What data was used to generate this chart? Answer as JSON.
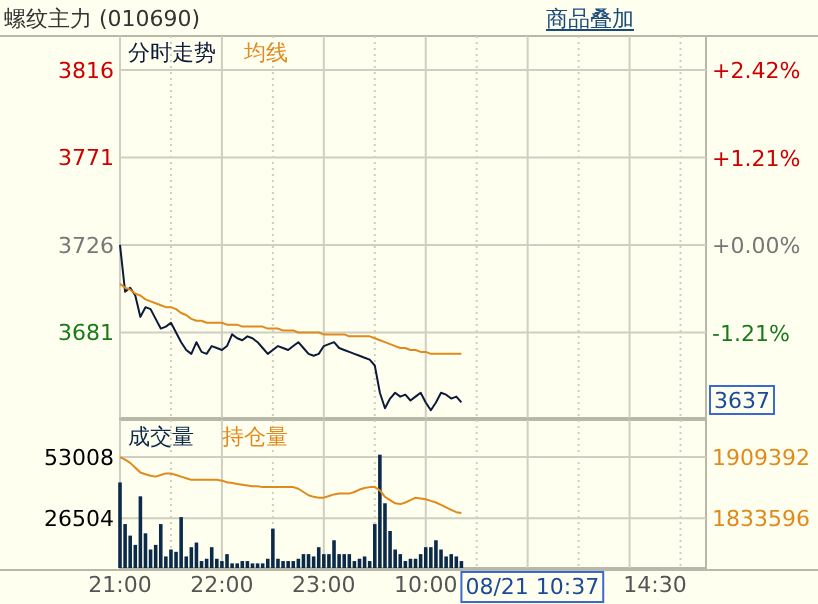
{
  "chart_data": [
    {
      "type": "line",
      "title": "螺纹主力 (010690)",
      "annotations": [
        "商品叠加",
        "3637"
      ],
      "categories": [
        null,
        null,
        null,
        null,
        null,
        null,
        null,
        null,
        null,
        null,
        null,
        null,
        null,
        null,
        null,
        null,
        null,
        null,
        null,
        null,
        null,
        null,
        null,
        null,
        null,
        null,
        null,
        null,
        null,
        null,
        null,
        null,
        null,
        null,
        null,
        null,
        null,
        null,
        null,
        null,
        null,
        null,
        null,
        null,
        null,
        null,
        null,
        null,
        null,
        null,
        null,
        null,
        null,
        null,
        null,
        null,
        null,
        null,
        null,
        null,
        null,
        null,
        null,
        null,
        null,
        null,
        null,
        null,
        null,
        null,
        null,
        null,
        null,
        null,
        null,
        null,
        null,
        null,
        null,
        null,
        null,
        null,
        null,
        null,
        null,
        null,
        null,
        null,
        null,
        null,
        null,
        null,
        null,
        null,
        null,
        null,
        null,
        null,
        null,
        null,
        null,
        null,
        null,
        null,
        null,
        null,
        null,
        null,
        null,
        null,
        null,
        null,
        null,
        null,
        null,
        null
      ],
      "series": [
        {
          "name": "分时走势",
          "color": "#0d1b3a",
          "values": [
            3726,
            3702,
            3704,
            3700,
            3689,
            3694,
            3693,
            3688,
            3683,
            3684,
            3686,
            3681,
            3676,
            3672,
            3670,
            3676,
            3671,
            3670,
            3674,
            3673,
            3672,
            3674,
            3680,
            3678,
            3677,
            3679,
            3678,
            3676,
            3673,
            3670,
            3672,
            3674,
            3673,
            3672,
            3674,
            3676,
            3673,
            3670,
            3669,
            3670,
            3674,
            3675,
            3676,
            3673,
            3672,
            3671,
            3670,
            3669,
            3668,
            3667,
            3664,
            3650,
            3642,
            3647,
            3650,
            3648,
            3649,
            3646,
            3648,
            3650,
            3645,
            3641,
            3645,
            3650,
            3649,
            3647,
            3648,
            3645,
            null,
            null,
            null,
            null,
            null,
            null,
            null,
            null,
            null,
            null,
            null,
            null,
            null,
            null,
            null,
            null,
            null,
            null,
            null,
            null,
            null,
            null,
            null,
            null,
            null,
            null,
            null,
            null,
            null,
            null,
            null,
            null,
            null,
            null,
            null,
            null,
            null,
            null,
            null,
            null,
            null,
            null,
            null,
            null,
            null,
            null,
            null,
            null
          ]
        },
        {
          "name": "均线",
          "color": "#e08a1e",
          "values": [
            3706,
            3704,
            3703,
            3701,
            3700,
            3698,
            3697,
            3696,
            3695,
            3694,
            3694,
            3693,
            3691,
            3690,
            3688,
            3687,
            3687,
            3686,
            3686,
            3686,
            3686,
            3685,
            3685,
            3685,
            3684,
            3684,
            3684,
            3684,
            3684,
            3683,
            3683,
            3683,
            3682,
            3682,
            3682,
            3681,
            3681,
            3681,
            3681,
            3681,
            3680,
            3680,
            3680,
            3680,
            3680,
            3679,
            3679,
            3679,
            3679,
            3679,
            3678,
            3677,
            3676,
            3675,
            3674,
            3673,
            3673,
            3672,
            3672,
            3671,
            3671,
            3670,
            3670,
            3670,
            3670,
            3670,
            3670,
            3670,
            null,
            null,
            null,
            null,
            null,
            null,
            null,
            null,
            null,
            null,
            null,
            null,
            null,
            null,
            null,
            null,
            null,
            null,
            null,
            null,
            null,
            null,
            null,
            null,
            null,
            null,
            null,
            null,
            null,
            null,
            null,
            null,
            null,
            null,
            null,
            null,
            null,
            null,
            null,
            null,
            null,
            null,
            null,
            null,
            null,
            null,
            null,
            null
          ]
        }
      ],
      "ylim": [
        3637,
        3816
      ],
      "yticks": [
        3681,
        3726,
        3771,
        3816
      ],
      "y2lim": [
        -2.39,
        2.42
      ],
      "y2ticks": [
        {
          "value": -1.21,
          "label": "-1.21%"
        },
        {
          "value": 0,
          "label": "+0.00%"
        },
        {
          "value": 1.21,
          "label": "+1.21%"
        },
        {
          "value": 2.42,
          "label": "+2.42%"
        }
      ],
      "tick_labels": "y",
      "grid": true,
      "legend": "top left"
    },
    {
      "type": "bar",
      "annotations": [
        "08/21 10:37"
      ],
      "categories": [
        "21:00",
        null,
        null,
        null,
        null,
        null,
        null,
        null,
        null,
        null,
        null,
        null,
        null,
        null,
        null,
        null,
        null,
        null,
        null,
        null,
        "22:00",
        null,
        null,
        null,
        null,
        null,
        null,
        null,
        null,
        null,
        null,
        null,
        null,
        null,
        null,
        null,
        null,
        null,
        null,
        null,
        "23:00",
        null,
        null,
        null,
        null,
        null,
        null,
        null,
        null,
        null,
        null,
        null,
        null,
        null,
        null,
        null,
        null,
        null,
        null,
        null,
        "10:00",
        null,
        null,
        null,
        null,
        null,
        null,
        null,
        null,
        null,
        null,
        null,
        null,
        null,
        null,
        null,
        null,
        null,
        null,
        null,
        null,
        null,
        null,
        null,
        null,
        null,
        null,
        null,
        null,
        null,
        null,
        null,
        null,
        null,
        null,
        null,
        null,
        null,
        null,
        null,
        null,
        null,
        null,
        null,
        null,
        "14:30",
        null,
        null,
        null,
        null,
        null,
        null,
        null,
        null,
        null,
        null
      ],
      "series": [
        {
          "name": "成交量",
          "color": "#0b2a4a",
          "values": [
            42000,
            24000,
            19000,
            15000,
            36000,
            20000,
            13000,
            15000,
            24000,
            10000,
            13000,
            12000,
            27000,
            10000,
            14000,
            16000,
            8000,
            9000,
            14000,
            9000,
            8000,
            11000,
            7000,
            7000,
            8000,
            8000,
            7000,
            7000,
            7000,
            9000,
            22000,
            9000,
            8000,
            8000,
            8000,
            9000,
            11000,
            11000,
            10000,
            14000,
            11000,
            11000,
            17000,
            11000,
            11000,
            11000,
            8000,
            9000,
            10000,
            8000,
            24000,
            54000,
            33000,
            21000,
            13000,
            11000,
            8000,
            9000,
            9000,
            11000,
            14000,
            14000,
            17000,
            13000,
            10000,
            11000,
            10000,
            8000,
            null,
            null,
            null,
            null,
            null,
            null,
            null,
            null,
            null,
            null,
            null,
            null,
            null,
            null,
            null,
            null,
            null,
            null,
            null,
            null,
            null,
            null,
            null,
            null,
            null,
            null,
            null,
            null,
            null,
            null,
            null,
            null,
            null,
            null,
            null,
            null,
            null,
            null,
            null,
            null,
            null,
            null,
            null,
            null,
            null,
            null,
            null,
            null
          ]
        },
        {
          "name": "持仓量",
          "type": "line",
          "axis": "y2",
          "color": "#e08a1e",
          "values": [
            1909000,
            1906000,
            1902000,
            1896000,
            1890000,
            1888000,
            1886000,
            1885000,
            1887000,
            1889000,
            1889000,
            1887000,
            1885000,
            1883000,
            1881000,
            1881000,
            1881000,
            1881000,
            1881000,
            1881000,
            1880000,
            1878000,
            1877000,
            1876000,
            1875000,
            1874000,
            1873000,
            1873000,
            1872000,
            1872000,
            1872000,
            1872000,
            1872000,
            1872000,
            1872000,
            1870000,
            1866000,
            1862000,
            1860000,
            1859000,
            1859000,
            1861000,
            1863000,
            1864000,
            1864000,
            1864000,
            1866000,
            1869000,
            1871000,
            1872000,
            1872000,
            1868000,
            1860000,
            1856000,
            1852000,
            1851000,
            1853000,
            1856000,
            1859000,
            1858000,
            1857000,
            1855000,
            1853000,
            1850000,
            1847000,
            1844000,
            1841000,
            1840000,
            null,
            null,
            null,
            null,
            null,
            null,
            null,
            null,
            null,
            null,
            null,
            null,
            null,
            null,
            null,
            null,
            null,
            null,
            null,
            null,
            null,
            null,
            null,
            null,
            null,
            null,
            null,
            null,
            null,
            null,
            null,
            null,
            null,
            null,
            null,
            null,
            null,
            null,
            null,
            null,
            null,
            null,
            null,
            null,
            null,
            null,
            null,
            null
          ]
        }
      ],
      "ylim": [
        5000,
        69000
      ],
      "yticks": [
        26504,
        53008
      ],
      "y2lim": [
        1772000,
        1955000
      ],
      "y2ticks": [
        1833596,
        1909392
      ],
      "grid": true,
      "legend": "top left"
    }
  ]
}
